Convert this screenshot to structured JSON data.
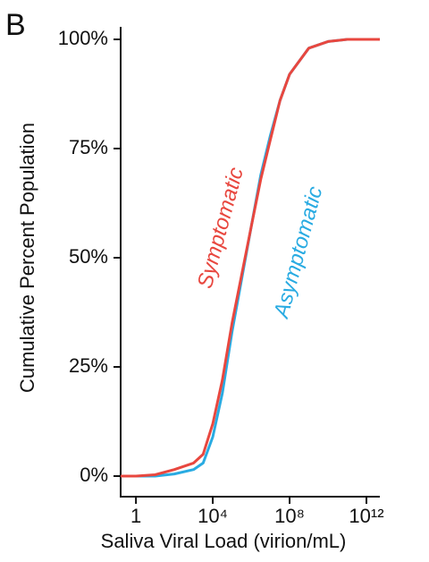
{
  "panel_label": "B",
  "chart_data": {
    "type": "line",
    "xlabel": "Saliva Viral Load (virion/mL)",
    "ylabel": "Cumulative Percent Population",
    "xscale": "log",
    "x": [
      0.16,
      1,
      10,
      100,
      1000,
      3162,
      10000,
      31623,
      100000,
      316228,
      1000000,
      3162278,
      10000000,
      31622777,
      100000000,
      1000000000,
      10000000000,
      100000000000,
      5000000000000
    ],
    "series": [
      {
        "name": "Asymptomatic",
        "color": "#29abe2",
        "values": [
          0,
          0,
          0,
          0.5,
          1.5,
          3,
          9,
          19,
          33,
          45,
          57,
          69,
          78,
          86,
          92,
          98,
          99.5,
          100,
          100
        ]
      },
      {
        "name": "Symptomatic",
        "color": "#e8473f",
        "values": [
          0,
          0,
          0.3,
          1.5,
          3,
          5,
          12,
          22,
          35,
          46,
          57,
          68,
          77,
          86,
          92,
          98,
          99.5,
          100,
          100
        ]
      }
    ],
    "xlim": [
      0.16,
      5000000000000
    ],
    "xticks": [
      1,
      {
        "value": 10000,
        "label": "10⁴"
      },
      {
        "value": 100000000,
        "label": "10⁸"
      },
      {
        "value": 1000000000000,
        "label": "10¹²"
      }
    ],
    "ylim": [
      0,
      100
    ],
    "yticks": [
      {
        "value": 0,
        "label": "0%"
      },
      {
        "value": 25,
        "label": "25%"
      },
      {
        "value": 50,
        "label": "50%"
      },
      {
        "value": 75,
        "label": "75%"
      },
      {
        "value": 100,
        "label": "100%"
      }
    ],
    "grid": false
  }
}
